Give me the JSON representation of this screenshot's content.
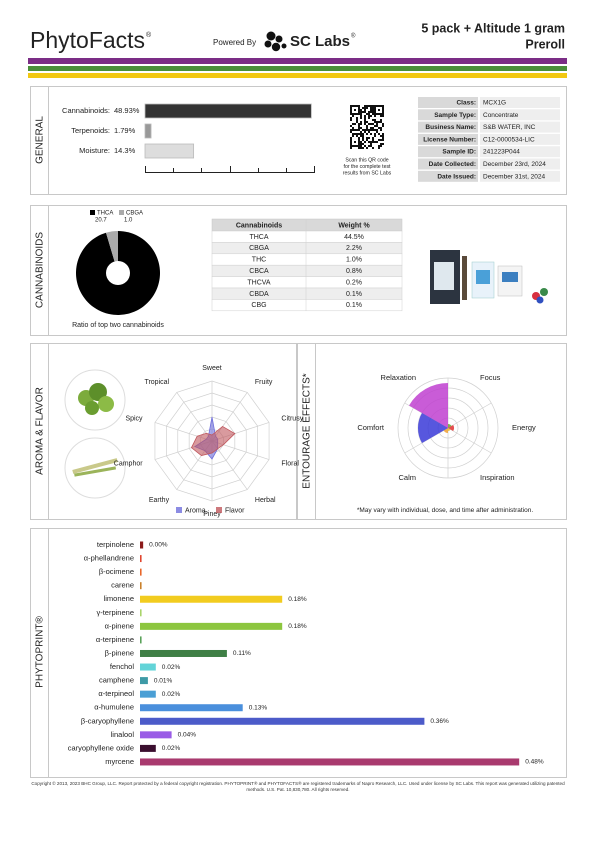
{
  "header": {
    "brand": "PhytoFacts",
    "brand_mark": "®",
    "powered_by": "Powered By",
    "lab": "SC Labs",
    "lab_mark": "®",
    "title_lines": [
      "5 pack + Altitude 1 gram",
      "Preroll"
    ]
  },
  "general": {
    "label": "GENERAL",
    "bars": [
      {
        "label": "Cannabinoids:",
        "value": 48.93,
        "value_label": "48.93%",
        "color": "#333333"
      },
      {
        "label": "Terpenoids:",
        "value": 1.79,
        "value_label": "1.79%",
        "color": "#999999"
      },
      {
        "label": "Moisture:",
        "value": 14.3,
        "value_label": "14.3%",
        "color": "#dddddd"
      }
    ],
    "qr_note": [
      "Scan this QR code",
      "for the complete test",
      "results from SC Labs"
    ],
    "info": [
      [
        "Class:",
        "MCX1G"
      ],
      [
        "Sample Type:",
        "Concentrate"
      ],
      [
        "Business Name:",
        "S&B WATER, INC"
      ],
      [
        "License Number:",
        "C12-0000534-LIC"
      ],
      [
        "Sample ID:",
        "241223P044"
      ],
      [
        "Date Collected:",
        "December 23rd, 2024"
      ],
      [
        "Date Issued:",
        "December 31st, 2024"
      ]
    ]
  },
  "cannabinoids": {
    "label": "CANNABINOIDS",
    "chart": {
      "type": "pie",
      "caption": "Ratio of top two cannabinoids",
      "series": [
        {
          "name": "THCA",
          "value": 20.7,
          "color": "#000000"
        },
        {
          "name": "CBGA",
          "value": 1.0,
          "value_label": "1.0",
          "color": "#aaaaaa"
        }
      ]
    },
    "table": {
      "header": [
        "Cannabinoids",
        "Weight %"
      ],
      "rows": [
        [
          "THCA",
          "44.5%"
        ],
        [
          "CBGA",
          "2.2%"
        ],
        [
          "THC",
          "1.0%"
        ],
        [
          "CBCA",
          "0.8%"
        ],
        [
          "THCVA",
          "0.2%"
        ],
        [
          "CBDA",
          "0.1%"
        ],
        [
          "CBG",
          "0.1%"
        ]
      ]
    }
  },
  "aroma": {
    "label": "AROMA & FLAVOR",
    "chart": {
      "type": "radar",
      "rlim": [
        0,
        5
      ],
      "axes": [
        "Sweet",
        "Fruity",
        "Citrusy",
        "Floral",
        "Herbal",
        "Piney",
        "Earthy",
        "Camphor",
        "Spicy",
        "Tropical"
      ],
      "series": [
        {
          "name": "Aroma",
          "color": "#6f6fdc",
          "values": [
            2,
            0.5,
            0.5,
            0.5,
            0.8,
            1.5,
            1,
            1.5,
            0.5,
            0.5
          ]
        },
        {
          "name": "Flavor",
          "color": "#c0575d",
          "values": [
            0.5,
            1.5,
            2,
            1,
            0.8,
            1,
            1.5,
            1.8,
            1.3,
            0.8
          ]
        }
      ]
    }
  },
  "entourage": {
    "label": "ENTOURAGE EFFECTS*",
    "note": "*May vary with individual, dose, and time after administration.",
    "chart": {
      "type": "polar_area",
      "rlim": [
        0,
        5
      ],
      "categories": [
        "Relaxation",
        "Focus",
        "Energy",
        "Inspiration",
        "Calm",
        "Comfort"
      ],
      "values": [
        4.5,
        0.4,
        0.6,
        0.3,
        0.5,
        3
      ],
      "colors": [
        "#c040d0",
        "#6aa830",
        "#e03030",
        "#e0c030",
        "#f0a030",
        "#3a3ad8"
      ]
    }
  },
  "phytoprint": {
    "label": "PHYTOPRINT®",
    "chart": {
      "type": "bar",
      "orientation": "horizontal",
      "categories": [
        "terpinolene",
        "α-phellandrene",
        "β-ocimene",
        "carene",
        "limonene",
        "γ-terpinene",
        "α-pinene",
        "α-terpinene",
        "β-pinene",
        "fenchol",
        "camphene",
        "α-terpineol",
        "α-humulene",
        "β-caryophyllene",
        "linalool",
        "caryophyllene oxide",
        "myrcene"
      ],
      "values": [
        0.004,
        0.002,
        0.002,
        0.002,
        0.18,
        0.002,
        0.18,
        0.002,
        0.11,
        0.02,
        0.01,
        0.02,
        0.13,
        0.36,
        0.04,
        0.02,
        0.48
      ],
      "value_labels": [
        "0.00%",
        null,
        null,
        null,
        "0.18%",
        null,
        "0.18%",
        null,
        "0.11%",
        "0.02%",
        "0.01%",
        "0.02%",
        "0.13%",
        "0.36%",
        "0.04%",
        "0.02%",
        "0.48%"
      ],
      "colors": [
        "#8b1a1a",
        "#e0452e",
        "#e8672a",
        "#c9802b",
        "#f2cc1f",
        "#a9d46a",
        "#8dc63f",
        "#5aa25a",
        "#3f7f46",
        "#63d4d8",
        "#3e9aa6",
        "#4a9fd5",
        "#4a8fdc",
        "#4c5bc9",
        "#9a5ce6",
        "#3b0f2f",
        "#a93a6e"
      ]
    }
  },
  "footer": "Copyright © 2013, 2023 BHC Group, LLC. Report protected by a federal copyright registration. PHYTOPRINT® and PHYTOFACTS® are registered trademarks of Napro Research, LLC. Used under license by SC Labs. This report was generated utilizing patented methods. U.S. Pat. 10,830,780. All rights reserved."
}
